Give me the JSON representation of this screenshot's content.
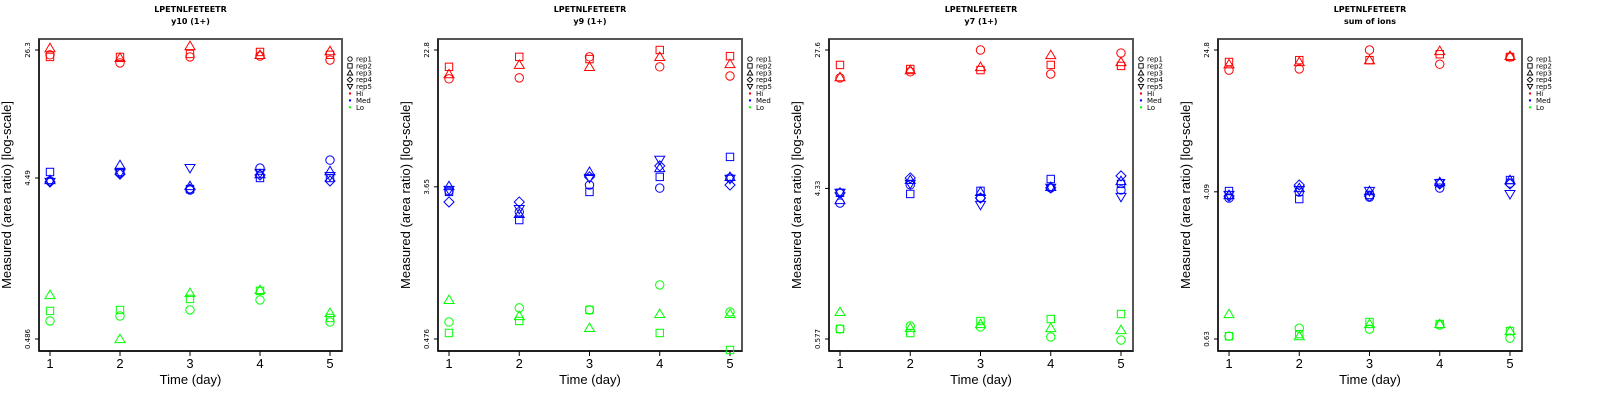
{
  "chart_data": [
    {
      "type": "scatter",
      "title": "LPETNLFETEETR",
      "subtitle": "y10 (1+)",
      "xlabel": "Time (day)",
      "ylabel": "Measured (area ratio) [log-scale]",
      "yscale": "log",
      "x_ticks": [
        "1",
        "2",
        "3",
        "4",
        "5"
      ],
      "y_ticks": [
        "26.3",
        "4.49",
        "0.486"
      ],
      "y_tick_values": [
        26.3,
        4.49,
        0.486
      ],
      "ylim": [
        0.486,
        26.3
      ],
      "series": [
        {
          "name": "Hi",
          "color": "#ff0000",
          "reps": {
            "rep1": [
              24.6,
              22.0,
              23.9,
              24.2,
              22.9
            ],
            "rep2": [
              23.9,
              23.9,
              24.9,
              25.6,
              24.6
            ],
            "rep3": [
              27.0,
              23.6,
              27.8,
              24.6,
              25.9
            ]
          }
        },
        {
          "name": "Med",
          "color": "#0000ff",
          "reps": {
            "rep1": [
              4.31,
              4.81,
              3.8,
              5.15,
              5.75
            ],
            "rep2": [
              4.88,
              4.88,
              3.85,
              4.49,
              4.49
            ],
            "rep3": [
              4.37,
              5.37,
              4.02,
              4.74,
              4.94
            ],
            "rep4": [
              4.25,
              4.74,
              3.85,
              4.68,
              4.31
            ],
            "rep5": [
              4.25,
              4.81,
              5.15,
              4.81,
              4.61
            ]
          }
        },
        {
          "name": "Lo",
          "color": "#00ff00",
          "reps": {
            "rep1": [
              0.624,
              0.668,
              0.726,
              0.834,
              0.615
            ],
            "rep2": [
              0.716,
              0.726,
              0.845,
              0.944,
              0.65
            ],
            "rep3": [
              0.893,
              0.486,
              0.918,
              0.957,
              0.697
            ]
          }
        }
      ]
    },
    {
      "type": "scatter",
      "title": "LPETNLFETEETR",
      "subtitle": "y9 (1+)",
      "xlabel": "Time (day)",
      "ylabel": "Measured (area ratio) [log-scale]",
      "yscale": "log",
      "x_ticks": [
        "1",
        "2",
        "3",
        "4",
        "5"
      ],
      "y_ticks": [
        "22.8",
        "3.65",
        "0.476"
      ],
      "y_tick_values": [
        22.8,
        3.65,
        0.476
      ],
      "ylim": [
        0.476,
        22.8
      ],
      "series": [
        {
          "name": "Hi",
          "color": "#ff0000",
          "reps": {
            "rep1": [
              15.5,
              15.7,
              20.8,
              18.2,
              16.1
            ],
            "rep2": [
              18.2,
              20.8,
              20.2,
              22.8,
              21.0
            ],
            "rep3": [
              16.5,
              18.7,
              18.2,
              20.8,
              18.9
            ]
          }
        },
        {
          "name": "Med",
          "color": "#0000ff",
          "reps": {
            "rep1": [
              3.45,
              2.61,
              3.74,
              3.59,
              4.11
            ],
            "rep2": [
              3.41,
              2.34,
              3.41,
              4.17,
              5.45
            ],
            "rep3": [
              3.69,
              2.54,
              4.46,
              4.7,
              4.17
            ],
            "rep4": [
              2.98,
              2.98,
              4.17,
              4.83,
              3.74
            ],
            "rep5": [
              3.5,
              2.71,
              4.11,
              5.24,
              4.06
            ]
          }
        },
        {
          "name": "Lo",
          "color": "#00ff00",
          "reps": {
            "rep1": [
              0.598,
              0.722,
              0.703,
              0.982,
              0.684
            ],
            "rep2": [
              0.516,
              0.606,
              0.703,
              0.516,
              0.411
            ],
            "rep3": [
              0.803,
              0.648,
              0.552,
              0.666,
              0.666
            ]
          }
        }
      ]
    },
    {
      "type": "scatter",
      "title": "LPETNLFETEETR",
      "subtitle": "y7 (1+)",
      "xlabel": "Time (day)",
      "ylabel": "Measured (area ratio) [log-scale]",
      "yscale": "log",
      "x_ticks": [
        "1",
        "2",
        "3",
        "4",
        "5"
      ],
      "y_ticks": [
        "27.6",
        "4.33",
        "0.577"
      ],
      "y_tick_values": [
        27.6,
        4.33,
        0.577
      ],
      "ylim": [
        0.577,
        27.6
      ],
      "series": [
        {
          "name": "Hi",
          "color": "#ff0000",
          "reps": {
            "rep1": [
              19.0,
              20.6,
              27.6,
              20.0,
              26.5
            ],
            "rep2": [
              22.6,
              21.4,
              21.1,
              22.6,
              22.3
            ],
            "rep3": [
              19.2,
              21.1,
              22.0,
              25.8,
              23.5
            ]
          }
        },
        {
          "name": "Med",
          "color": "#0000ff",
          "reps": {
            "rep1": [
              3.56,
              4.54,
              3.81,
              4.36,
              4.24
            ],
            "rep2": [
              4.08,
              4.02,
              4.19,
              4.91,
              4.6
            ],
            "rep3": [
              3.71,
              4.85,
              4.13,
              4.42,
              4.78
            ],
            "rep4": [
              4.08,
              4.98,
              3.81,
              4.36,
              5.12
            ],
            "rep5": [
              4.08,
              4.6,
              3.47,
              4.36,
              3.86
            ]
          }
        },
        {
          "name": "Lo",
          "color": "#00ff00",
          "reps": {
            "rep1": [
              0.66,
              0.687,
              0.678,
              0.593,
              0.569
            ],
            "rep2": [
              0.66,
              0.625,
              0.734,
              0.754,
              0.806
            ],
            "rep3": [
              0.829,
              0.669,
              0.705,
              0.669,
              0.651
            ]
          }
        }
      ]
    },
    {
      "type": "scatter",
      "title": "LPETNLFETEETR",
      "subtitle": "sum of ions",
      "xlabel": "Time (day)",
      "ylabel": "Measured (area ratio) [log-scale]",
      "yscale": "log",
      "x_ticks": [
        "1",
        "2",
        "3",
        "4",
        "5"
      ],
      "y_ticks": [
        "24.8",
        "4.09",
        "0.63"
      ],
      "y_tick_values": [
        24.8,
        4.09,
        0.63
      ],
      "ylim": [
        0.63,
        24.8
      ],
      "series": [
        {
          "name": "Hi",
          "color": "#ff0000",
          "reps": {
            "rep1": [
              19.2,
              19.5,
              24.8,
              20.7,
              22.7
            ],
            "rep2": [
              21.3,
              21.8,
              21.8,
              23.5,
              22.7
            ],
            "rep3": [
              20.7,
              21.3,
              21.8,
              24.5,
              23.0
            ]
          }
        },
        {
          "name": "Med",
          "color": "#0000ff",
          "reps": {
            "rep1": [
              3.78,
              4.08,
              3.82,
              4.29,
              4.57
            ],
            "rep2": [
              4.13,
              3.73,
              3.93,
              4.57,
              4.75
            ],
            "rep3": [
              3.93,
              4.29,
              4.13,
              4.63,
              4.75
            ],
            "rep4": [
              3.87,
              4.46,
              3.87,
              4.52,
              4.52
            ],
            "rep5": [
              3.93,
              4.18,
              4.13,
              4.57,
              3.97
            ]
          }
        },
        {
          "name": "Lo",
          "color": "#00ff00",
          "reps": {
            "rep1": [
              0.653,
              0.723,
              0.714,
              0.752,
              0.637
            ],
            "rep2": [
              0.653,
              0.67,
              0.782,
              0.762,
              0.697
            ],
            "rep3": [
              0.865,
              0.653,
              0.762,
              0.762,
              0.697
            ]
          }
        }
      ]
    }
  ],
  "legend": {
    "shapes": [
      {
        "label": "rep1",
        "shape": "circle"
      },
      {
        "label": "rep2",
        "shape": "square"
      },
      {
        "label": "rep3",
        "shape": "triangle-up"
      },
      {
        "label": "rep4",
        "shape": "diamond"
      },
      {
        "label": "rep5",
        "shape": "triangle-down"
      }
    ],
    "colors": [
      {
        "label": "Hi",
        "color": "#ff0000"
      },
      {
        "label": "Med",
        "color": "#0000ff"
      },
      {
        "label": "Lo",
        "color": "#00ff00"
      }
    ],
    "placement": "right"
  }
}
